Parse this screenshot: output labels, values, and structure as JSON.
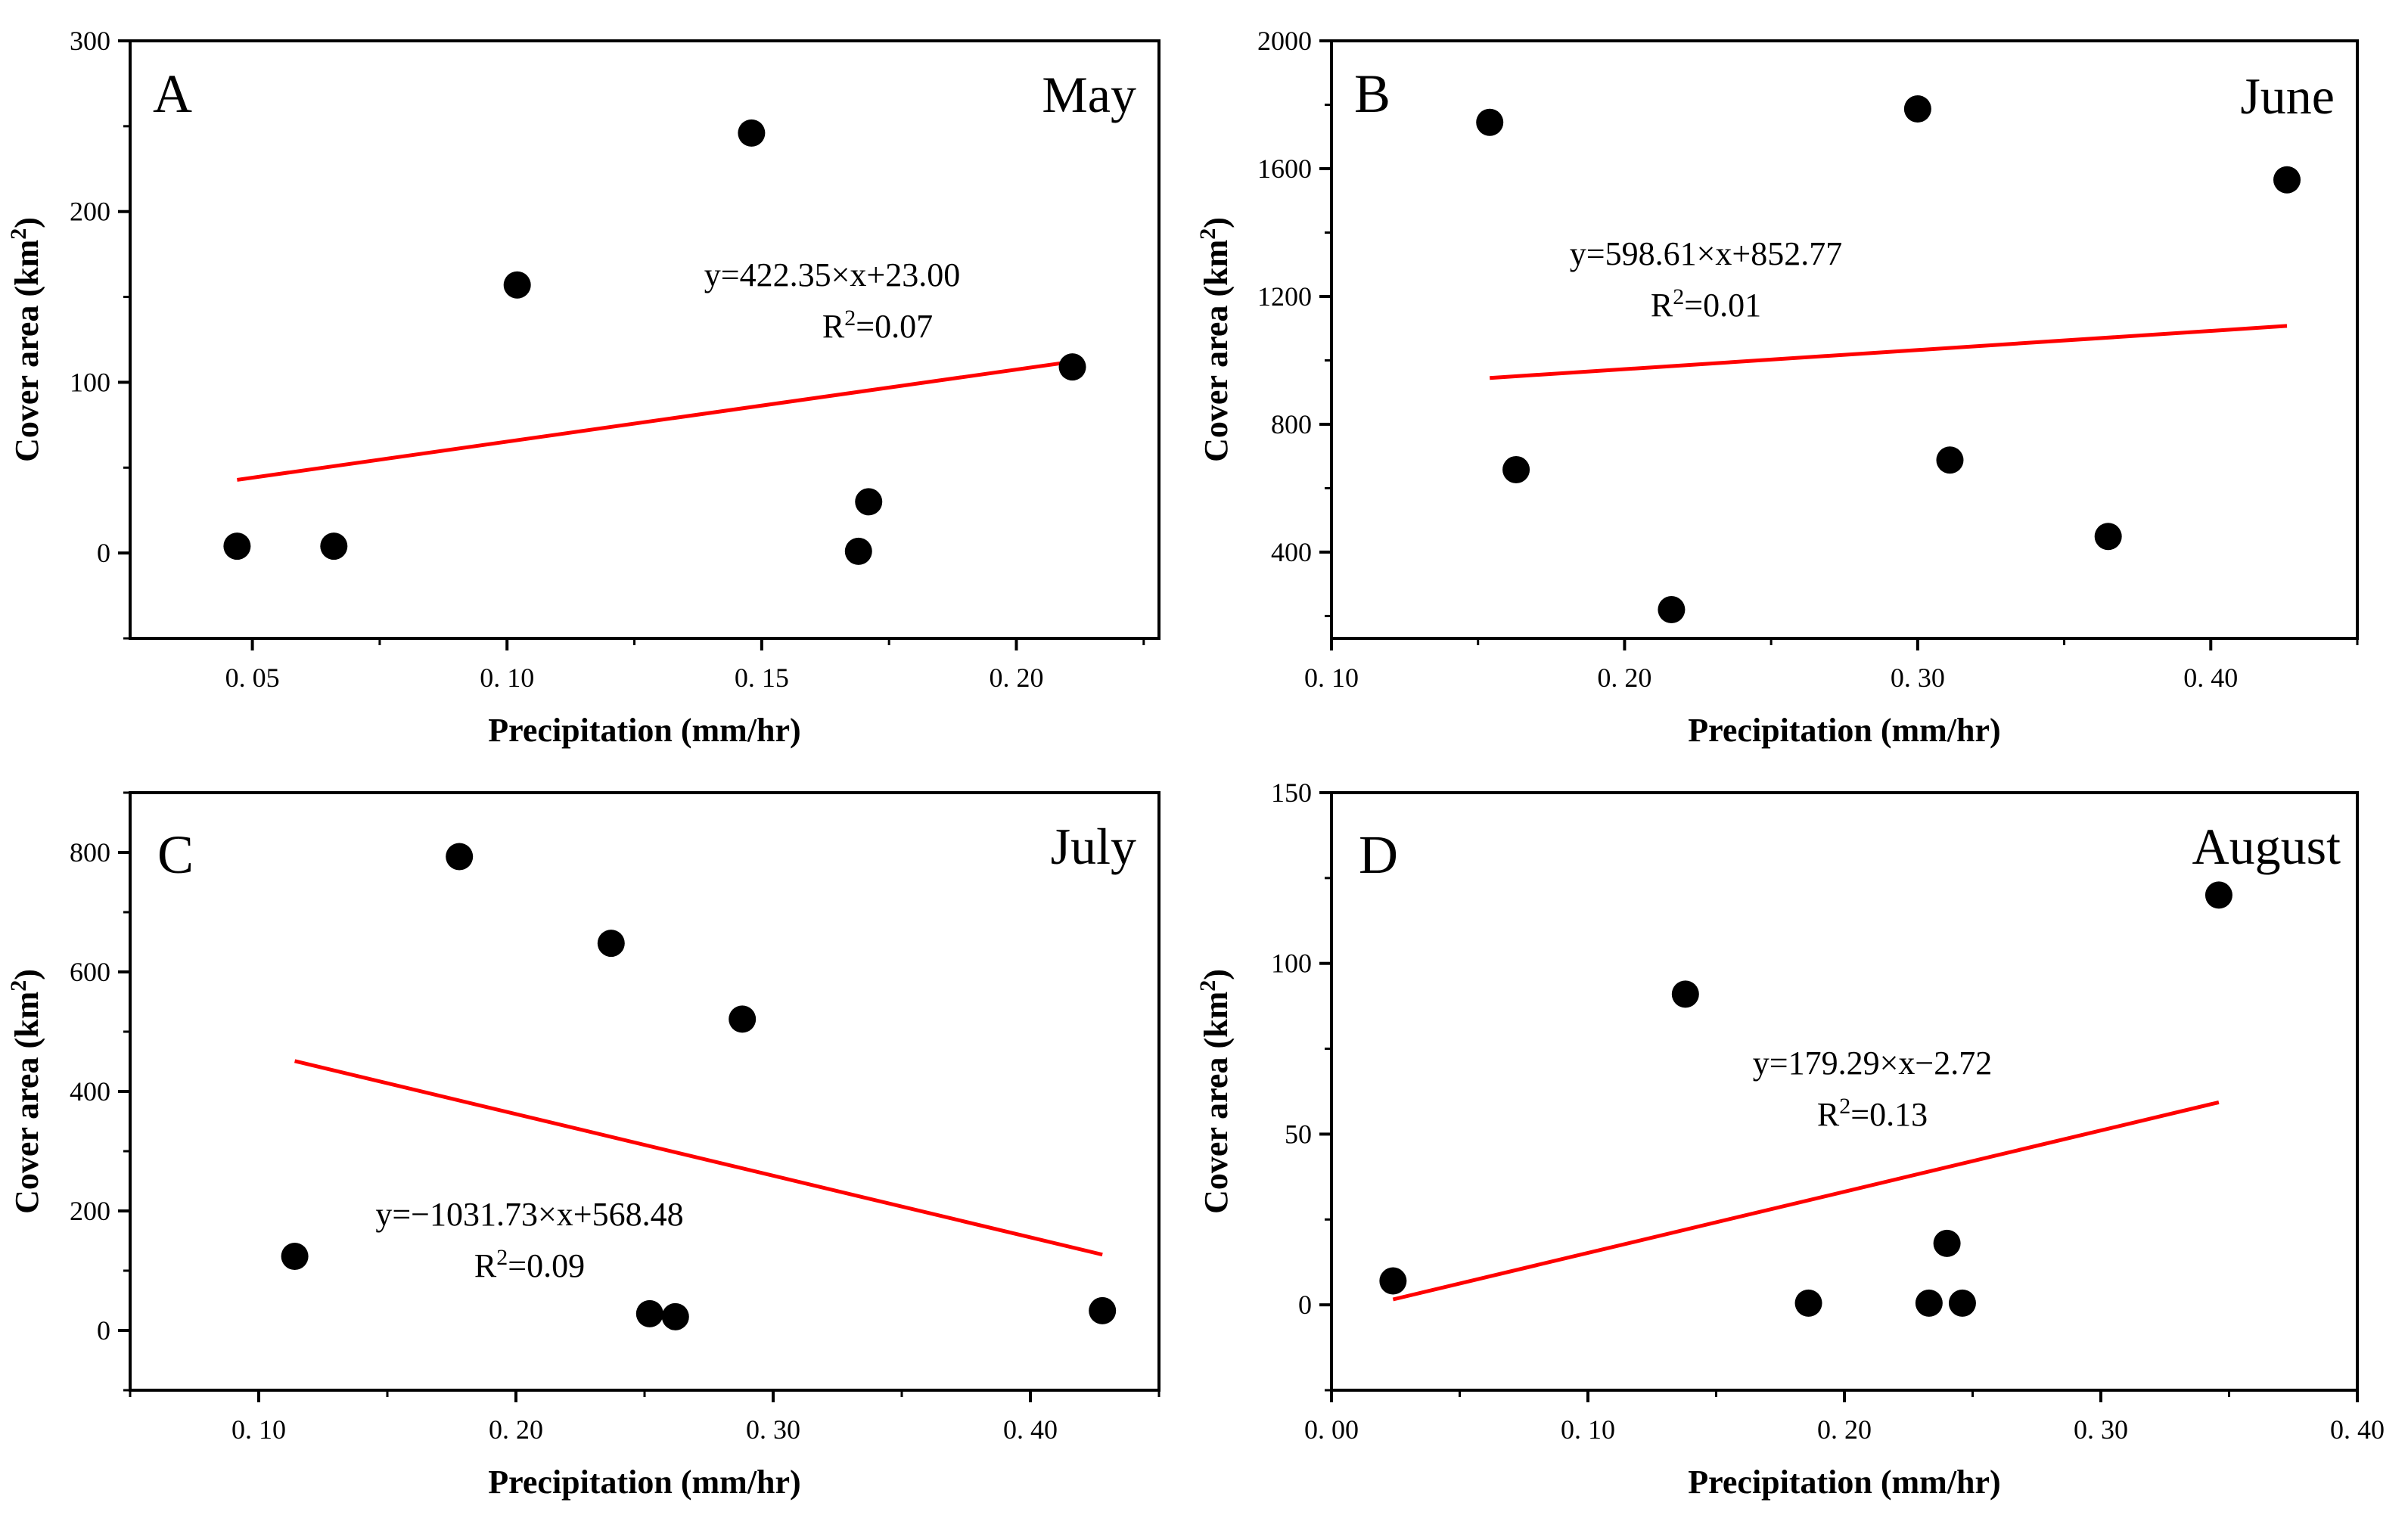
{
  "chart_data": [
    {
      "type": "scatter",
      "panel_label": "A",
      "month": "May",
      "xlabel": "Precipitation (mm/hr)",
      "ylabel": "Cover area (km²)",
      "xlim": [
        0.026,
        0.228
      ],
      "ylim": [
        -50,
        300
      ],
      "xticks": [
        0.05,
        0.1,
        0.15,
        0.2
      ],
      "xtick_labels": [
        "0. 05",
        "0. 10",
        "0. 15",
        "0. 20"
      ],
      "yticks": [
        0,
        100,
        200,
        300
      ],
      "ytick_labels": [
        "0",
        "100",
        "200",
        "300"
      ],
      "points": [
        [
          0.047,
          4
        ],
        [
          0.066,
          4
        ],
        [
          0.102,
          157
        ],
        [
          0.148,
          246
        ],
        [
          0.169,
          1
        ],
        [
          0.171,
          30
        ],
        [
          0.211,
          109
        ]
      ],
      "fit": {
        "slope": 422.35,
        "intercept": 23.0,
        "x_range": [
          0.047,
          0.211
        ]
      },
      "equation": "y=422.35×x+23.00",
      "r2_label": "R",
      "r2_value": "=0.07"
    },
    {
      "type": "scatter",
      "panel_label": "B",
      "month": "June",
      "xlabel": "Precipitation (mm/hr)",
      "ylabel": "Cover area (km²)",
      "xlim": [
        0.1,
        0.45
      ],
      "ylim": [
        130,
        2000
      ],
      "xticks": [
        0.1,
        0.2,
        0.3,
        0.4
      ],
      "xtick_labels": [
        "0. 10",
        "0. 20",
        "0. 30",
        "0. 40"
      ],
      "yticks": [
        400,
        800,
        1200,
        1600,
        2000
      ],
      "ytick_labels": [
        "400",
        "800",
        "1200",
        "1600",
        "2000"
      ],
      "points": [
        [
          0.154,
          1745
        ],
        [
          0.163,
          658
        ],
        [
          0.216,
          220
        ],
        [
          0.3,
          1787
        ],
        [
          0.311,
          688
        ],
        [
          0.365,
          449
        ],
        [
          0.426,
          1565
        ]
      ],
      "fit": {
        "slope": 598.61,
        "intercept": 852.77,
        "x_range": [
          0.154,
          0.426
        ]
      },
      "equation": "y=598.61×x+852.77",
      "r2_label": "R",
      "r2_value": "=0.01"
    },
    {
      "type": "scatter",
      "panel_label": "C",
      "month": "July",
      "xlabel": "Precipitation (mm/hr)",
      "ylabel": "Cover area (km²)",
      "xlim": [
        0.05,
        0.45
      ],
      "ylim": [
        -100,
        900
      ],
      "xticks": [
        0.1,
        0.2,
        0.3,
        0.4
      ],
      "xtick_labels": [
        "0. 10",
        "0. 20",
        "0. 30",
        "0. 40"
      ],
      "yticks": [
        0,
        200,
        400,
        600,
        800
      ],
      "ytick_labels": [
        "0",
        "200",
        "400",
        "600",
        "800"
      ],
      "points": [
        [
          0.114,
          124
        ],
        [
          0.178,
          793
        ],
        [
          0.237,
          648
        ],
        [
          0.252,
          28
        ],
        [
          0.262,
          23
        ],
        [
          0.288,
          521
        ],
        [
          0.428,
          33
        ]
      ],
      "fit": {
        "slope": -1031.73,
        "intercept": 568.48,
        "x_range": [
          0.114,
          0.428
        ]
      },
      "equation": "y=−1031.73×x+568.48",
      "r2_label": "R",
      "r2_value": "=0.09"
    },
    {
      "type": "scatter",
      "panel_label": "D",
      "month": "August",
      "xlabel": "Precipitation (mm/hr)",
      "ylabel": "Cover area (km²)",
      "xlim": [
        0.0,
        0.4
      ],
      "ylim": [
        -25,
        150
      ],
      "xticks": [
        0.0,
        0.1,
        0.2,
        0.3,
        0.4
      ],
      "xtick_labels": [
        "0. 00",
        "0. 10",
        "0. 20",
        "0. 30",
        "0. 40"
      ],
      "yticks": [
        0,
        50,
        100,
        150
      ],
      "ytick_labels": [
        "0",
        "50",
        "100",
        "150"
      ],
      "points": [
        [
          0.024,
          7
        ],
        [
          0.138,
          91
        ],
        [
          0.186,
          0.5
        ],
        [
          0.233,
          0.5
        ],
        [
          0.24,
          18
        ],
        [
          0.246,
          0.5
        ],
        [
          0.346,
          120
        ]
      ],
      "fit": {
        "slope": 179.29,
        "intercept": -2.72,
        "x_range": [
          0.024,
          0.346
        ]
      },
      "equation": "y=179.29×x−2.72",
      "r2_label": "R",
      "r2_value": "=0.13"
    }
  ]
}
